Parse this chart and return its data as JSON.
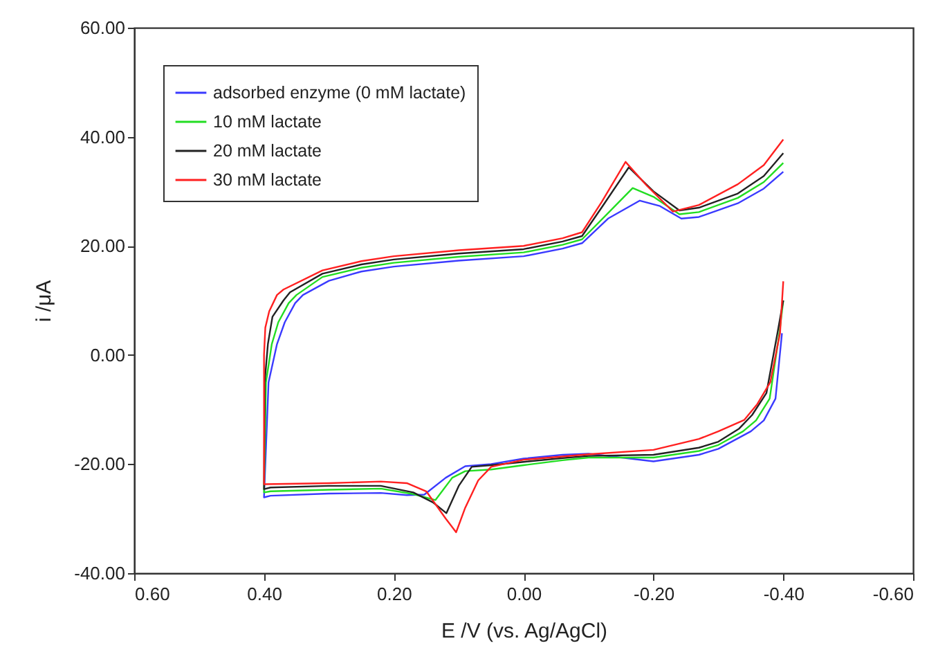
{
  "chart_data": {
    "type": "line",
    "xlabel": "E /V (vs. Ag/AgCl)",
    "ylabel": "i /μA",
    "xlim": [
      0.6,
      -0.6
    ],
    "xticks": [
      {
        "value": 0.6,
        "label": "0.60"
      },
      {
        "value": 0.4,
        "label": "0.40"
      },
      {
        "value": 0.2,
        "label": "0.20"
      },
      {
        "value": 0,
        "label": "0.00"
      },
      {
        "value": -0.2,
        "label": "-0.20"
      },
      {
        "value": -0.4,
        "label": "-0.40"
      },
      {
        "value": -0.6,
        "label": "-0.60"
      }
    ],
    "ylim": [
      -40,
      60
    ],
    "yticks": [
      {
        "value": -40,
        "label": "-40.00"
      },
      {
        "value": -20,
        "label": "-20.00"
      },
      {
        "value": 0,
        "label": "0.00"
      },
      {
        "value": 20,
        "label": "20.00"
      },
      {
        "value": 40,
        "label": "40.00"
      },
      {
        "value": 60,
        "label": "60.00"
      }
    ],
    "grid": false,
    "legend": "top left",
    "marker": "none",
    "line_style": "solid",
    "series": [
      {
        "name": "adsorbed enzyme (0 mM lactate)",
        "color": "#3a3aff",
        "x": [
          -0.398,
          -0.388,
          -0.37,
          -0.35,
          -0.3,
          -0.27,
          -0.2,
          -0.1,
          -0.06,
          0.0,
          0.05,
          0.09,
          0.12,
          0.153,
          0.18,
          0.22,
          0.3,
          0.39,
          0.4,
          0.393,
          0.38,
          0.368,
          0.352,
          0.34,
          0.3,
          0.25,
          0.2,
          0.1,
          0.0,
          -0.06,
          -0.09,
          -0.13,
          -0.179,
          -0.21,
          -0.243,
          -0.27,
          -0.33,
          -0.37,
          -0.4
        ],
        "values": [
          4,
          -8,
          -12,
          -14,
          -17.2,
          -18.3,
          -19.5,
          -18.1,
          -18.3,
          -19.0,
          -20.0,
          -20.4,
          -22.5,
          -25.6,
          -25.7,
          -25.3,
          -25.4,
          -25.8,
          -26.1,
          -5,
          2,
          6,
          9.5,
          11,
          13.6,
          15.3,
          16.2,
          17.3,
          18.1,
          19.5,
          20.5,
          25,
          28.3,
          27.3,
          25,
          25.3,
          27.8,
          30.5,
          33.6
        ]
      },
      {
        "name": "10 mM lactate",
        "color": "#22dd22",
        "x": [
          -0.4,
          -0.394,
          -0.379,
          -0.358,
          -0.338,
          -0.3,
          -0.27,
          -0.2,
          -0.1,
          -0.06,
          0.0,
          0.05,
          0.09,
          0.11,
          0.136,
          0.17,
          0.22,
          0.3,
          0.39,
          0.4,
          0.397,
          0.388,
          0.378,
          0.362,
          0.35,
          0.31,
          0.25,
          0.2,
          0.1,
          0.0,
          -0.06,
          -0.09,
          -0.13,
          -0.168,
          -0.2,
          -0.24,
          -0.27,
          -0.33,
          -0.37,
          -0.4
        ],
        "values": [
          10,
          4,
          -8,
          -12,
          -14,
          -16.5,
          -17.6,
          -18.8,
          -18.8,
          -19.3,
          -20.2,
          -21,
          -21.3,
          -22.5,
          -26.6,
          -25.5,
          -24.5,
          -24.7,
          -25,
          -25.2,
          -5,
          2,
          6,
          9.5,
          11,
          14.3,
          16,
          16.9,
          18,
          18.8,
          20.2,
          21.2,
          26,
          30.6,
          29,
          25.8,
          26.2,
          28.8,
          31.7,
          35.2
        ]
      },
      {
        "name": "20 mM lactate",
        "color": "#222222",
        "x": [
          -0.4,
          -0.391,
          -0.374,
          -0.352,
          -0.332,
          -0.3,
          -0.27,
          -0.2,
          -0.1,
          -0.06,
          0.0,
          0.05,
          0.08,
          0.1,
          0.119,
          0.14,
          0.17,
          0.22,
          0.3,
          0.39,
          0.4,
          0.399,
          0.394,
          0.387,
          0.37,
          0.36,
          0.31,
          0.25,
          0.2,
          0.1,
          0.0,
          -0.06,
          -0.09,
          -0.12,
          -0.162,
          -0.2,
          -0.24,
          -0.27,
          -0.33,
          -0.37,
          -0.4
        ],
        "values": [
          10,
          4,
          -7,
          -11,
          -13.5,
          -15.9,
          -17.0,
          -18.3,
          -18.5,
          -18.9,
          -19.6,
          -20.2,
          -20.5,
          -24,
          -29,
          -27,
          -25.2,
          -24.0,
          -24.0,
          -24.3,
          -24.6,
          -5,
          2,
          7,
          10,
          11.5,
          14.9,
          16.6,
          17.5,
          18.6,
          19.4,
          20.8,
          21.8,
          27,
          34.4,
          30,
          26.5,
          27,
          29.6,
          32.8,
          37
        ]
      },
      {
        "name": "30 mM lactate",
        "color": "#ff2020",
        "x": [
          -0.4,
          -0.395,
          -0.38,
          -0.36,
          -0.34,
          -0.3,
          -0.27,
          -0.2,
          -0.1,
          0.0,
          0.05,
          0.07,
          0.09,
          0.104,
          0.12,
          0.15,
          0.18,
          0.22,
          0.3,
          0.4,
          0.4,
          0.4,
          0.398,
          0.392,
          0.38,
          0.37,
          0.31,
          0.25,
          0.2,
          0.1,
          0.0,
          -0.06,
          -0.09,
          -0.12,
          -0.157,
          -0.19,
          -0.23,
          -0.27,
          -0.33,
          -0.37,
          -0.4
        ],
        "values": [
          13.5,
          4,
          -5,
          -9,
          -11.9,
          -14,
          -15.4,
          -17.4,
          -18.2,
          -19.2,
          -20.5,
          -23,
          -28,
          -32.5,
          -30,
          -25,
          -23.5,
          -23.2,
          -23.5,
          -23.7,
          -10,
          0,
          5,
          8,
          11,
          12,
          15.5,
          17.2,
          18.1,
          19.2,
          20,
          21.4,
          22.5,
          28,
          35.4,
          31,
          26.3,
          27.5,
          31.3,
          34.8,
          39.5
        ]
      }
    ]
  }
}
